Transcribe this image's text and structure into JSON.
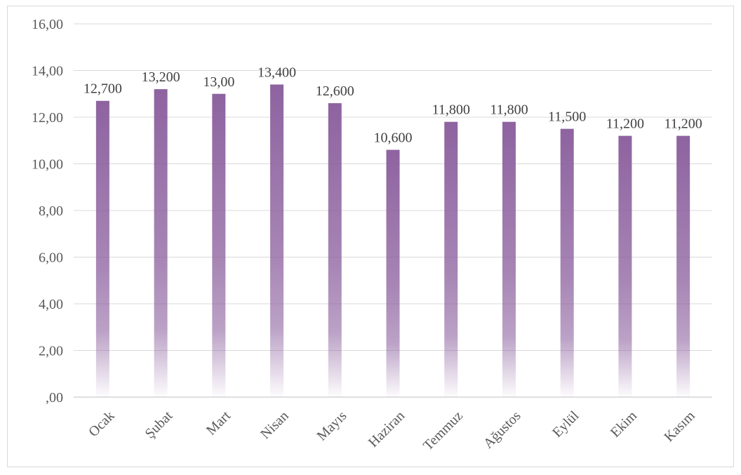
{
  "chart_data": {
    "type": "bar",
    "categories": [
      "Ocak",
      "Şubat",
      "Mart",
      "Nisan",
      "Mayıs",
      "Haziran",
      "Temmuz",
      "Ağustos",
      "Eylül",
      "Ekim",
      "Kasım"
    ],
    "values": [
      12.7,
      13.2,
      13.0,
      13.4,
      12.6,
      10.6,
      11.8,
      11.8,
      11.5,
      11.2,
      11.2
    ],
    "data_labels": [
      "12,700",
      "13,200",
      "13,00",
      "13,400",
      "12,600",
      "10,600",
      "11,800",
      "11,800",
      "11,500",
      "11,200",
      "11,200"
    ],
    "y_ticks": [
      0,
      2,
      4,
      6,
      8,
      10,
      12,
      14,
      16
    ],
    "y_tick_labels": [
      ",00",
      "2,00",
      "4,00",
      "6,00",
      "8,00",
      "10,00",
      "12,00",
      "14,00",
      "16,00"
    ],
    "ylim": [
      0,
      16
    ],
    "title": "",
    "xlabel": "",
    "ylabel": "",
    "grid": true,
    "legend": "none",
    "bar_color": "#8e63a0"
  }
}
